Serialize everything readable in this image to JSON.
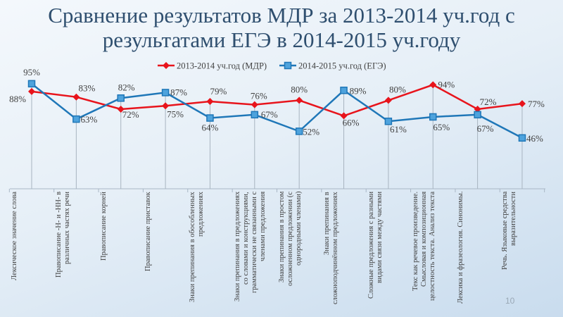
{
  "chart_data": {
    "type": "line",
    "title": "Сравнение результатов МДР за 2013-2014 уч.год с результатами ЕГЭ в 2014-2015 уч.году",
    "categories": [
      "Лексическое значение слова",
      "Правописание -Н- и -НН- в различных частях речи",
      "Правописание корней",
      "Правописание приставок",
      "Знаки препинания в обособленных предложениях",
      "Знаки препинания в предложениях со словами и конструкциями, грамматически не связанными с членами предложения",
      "Знаки препинания в простом осложненном предложении (с однородными членами)",
      "Знаки препинания в сложноподчинённом предложениях",
      "Сложные предложения с разными видами связи между частями",
      "Текс как речевое произведение. Смысловая и композиционная целостность текста. Анализ текста",
      "Лексика и фразеология. Синонимы.",
      "Речь. Языковые средства выразительности"
    ],
    "series": [
      {
        "name": "2013-2014 уч.год (МДР)",
        "color": "#e8141c",
        "marker": "diamond",
        "values": [
          88,
          83,
          72,
          75,
          79,
          76,
          80,
          66,
          80,
          94,
          72,
          77
        ]
      },
      {
        "name": "2014-2015 уч.год (ЕГЭ)",
        "color": "#1f77b8",
        "marker": "square",
        "values": [
          95,
          63,
          82,
          87,
          64,
          67,
          52,
          89,
          61,
          65,
          67,
          46
        ]
      }
    ],
    "value_format": "percent",
    "ylim": [
      0,
      100
    ],
    "legend": "top",
    "grid": false,
    "drop_lines": true
  },
  "page_number": "10"
}
